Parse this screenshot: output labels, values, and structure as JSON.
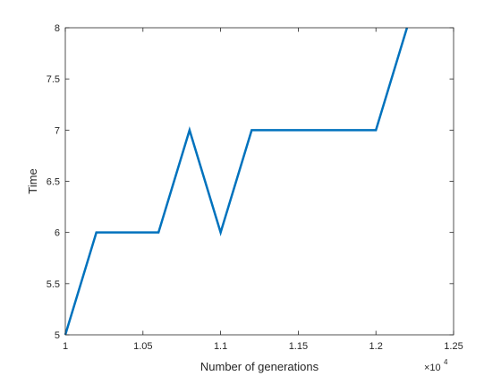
{
  "chart_data": {
    "type": "line",
    "xlabel": "Number of generations",
    "ylabel": "Time",
    "x_exponent_label": "×10",
    "x_exponent_power": "4",
    "xlim": [
      1,
      1.25
    ],
    "ylim": [
      5,
      8
    ],
    "x_ticks": [
      1,
      1.05,
      1.1,
      1.15,
      1.2,
      1.25
    ],
    "x_tick_labels": [
      "1",
      "1.05",
      "1.1",
      "1.15",
      "1.2",
      "1.25"
    ],
    "y_ticks": [
      5,
      5.5,
      6,
      6.5,
      7,
      7.5,
      8
    ],
    "y_tick_labels": [
      "5",
      "5.5",
      "6",
      "6.5",
      "7",
      "7.5",
      "8"
    ],
    "grid": false,
    "line_color": "#0072BD",
    "series": [
      {
        "x": [
          1.0,
          1.02,
          1.06,
          1.08,
          1.1,
          1.12,
          1.2,
          1.22
        ],
        "y": [
          5,
          6,
          6,
          7,
          6,
          7,
          7,
          8
        ]
      }
    ]
  }
}
